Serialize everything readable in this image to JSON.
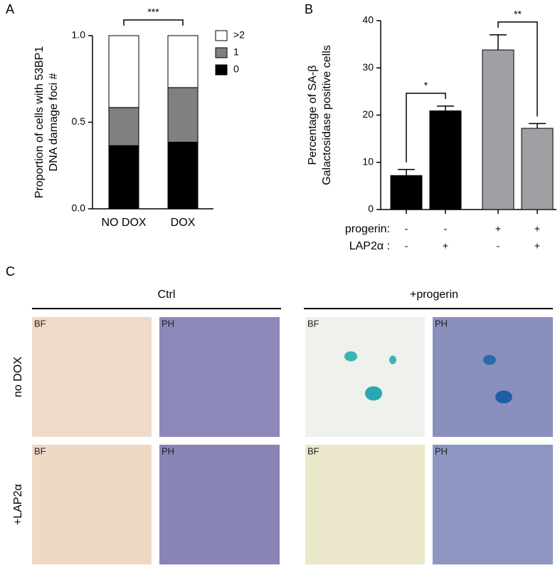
{
  "chart_data": [
    {
      "type": "bar",
      "stacked": true,
      "panel": "A",
      "ylabel": [
        "Proportion of cells with 53BP1",
        "DNA damage foci #"
      ],
      "categories": [
        "NO DOX",
        "DOX"
      ],
      "series": [
        {
          "name": "0",
          "color": "#000000",
          "values": [
            0.365,
            0.385
          ]
        },
        {
          "name": "1",
          "color": "#808080",
          "values": [
            0.22,
            0.315
          ]
        },
        {
          "name": ">2",
          "color": "#ffffff",
          "values": [
            0.415,
            0.3
          ]
        }
      ],
      "ylim": [
        0,
        1
      ],
      "yticks": [
        {
          "value": 0,
          "label": "0.0"
        },
        {
          "value": 0.5,
          "label": "0.5"
        },
        {
          "value": 1,
          "label": "1.0"
        }
      ],
      "legend": "right",
      "annotations": [
        "***"
      ]
    },
    {
      "type": "bar",
      "stacked": false,
      "panel": "B",
      "ylabel": [
        "Percentage of SA-β",
        "Galactosidase positive cells"
      ],
      "values": [
        7.2,
        20.9,
        33.8,
        17.2
      ],
      "errors": [
        1.3,
        1.0,
        3.2,
        1.0
      ],
      "colors": [
        "#000000",
        "#000000",
        "#a0a0a4",
        "#a0a0a4"
      ],
      "ylim": [
        0,
        40
      ],
      "yticks": [
        0,
        10,
        20,
        30,
        40
      ],
      "conditions": [
        {
          "name": "progerin:",
          "signs": [
            "-",
            "-",
            "+",
            "+"
          ]
        },
        {
          "name": "LAP2α :",
          "signs": [
            "-",
            "+",
            "-",
            "+"
          ]
        }
      ],
      "annotations": [
        "*",
        "**"
      ]
    }
  ],
  "panel_c": {
    "panel": "C",
    "groups": [
      "Ctrl",
      "+progerin"
    ],
    "rows": [
      "no DOX",
      "+LAP2α"
    ],
    "images": [
      [
        "BF",
        "PH",
        "BF",
        "PH"
      ],
      [
        "BF",
        "PH",
        "BF",
        "PH"
      ]
    ]
  }
}
